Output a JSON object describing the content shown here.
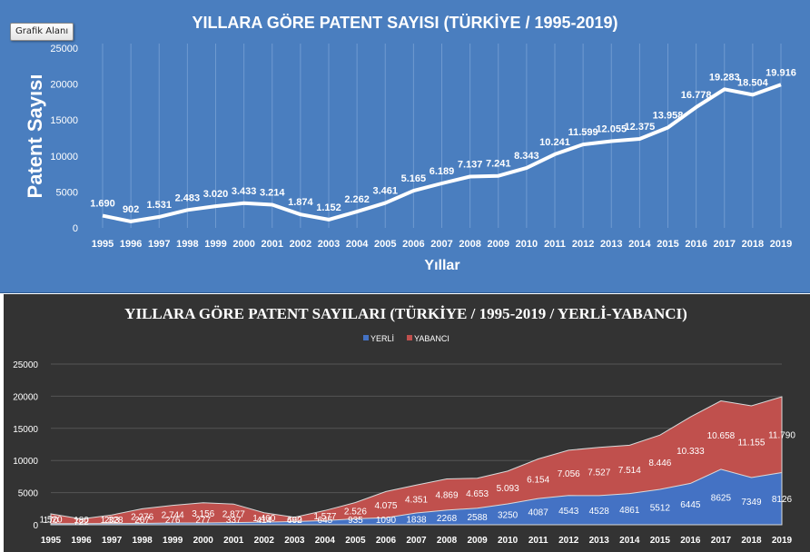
{
  "tooltip": "Grafik Alanı",
  "colors": {
    "chart1_bg": "#4a7ebf",
    "chart2_bg": "#333333",
    "yerli": "#4472c4",
    "yabanci": "#c0504d",
    "line": "#ffffff"
  },
  "chart_data": [
    {
      "type": "line",
      "title": "YILLARA GÖRE PATENT SAYISI (TÜRKİYE / 1995-2019)",
      "xlabel": "Yıllar",
      "ylabel": "Patent Sayısı",
      "ylim": [
        0,
        25000
      ],
      "yticks": [
        "0",
        "5000",
        "10000",
        "15000",
        "20000",
        "25000"
      ],
      "grid": "vertical",
      "categories": [
        "1995",
        "1996",
        "1997",
        "1998",
        "1999",
        "2000",
        "2001",
        "2002",
        "2003",
        "2004",
        "2005",
        "2006",
        "2007",
        "2008",
        "2009",
        "2010",
        "2011",
        "2012",
        "2013",
        "2014",
        "2015",
        "2016",
        "2017",
        "2018",
        "2019"
      ],
      "values": [
        1690,
        902,
        1531,
        2483,
        3020,
        3433,
        3214,
        1874,
        1152,
        2262,
        3461,
        5165,
        6189,
        7137,
        7241,
        8343,
        10241,
        11599,
        12055,
        12375,
        13958,
        16778,
        19283,
        18504,
        19916
      ],
      "data_labels": [
        "1.690",
        "902",
        "1.531",
        "2.483",
        "3.020",
        "3.433",
        "3.214",
        "1.874",
        "1.152",
        "2.262",
        "3.461",
        "5.165",
        "6.189",
        "7.137",
        "7.241",
        "8.343",
        "10.241",
        "11.599",
        "12.055",
        "12.375",
        "13.958",
        "16.778",
        "19.283",
        "18.504",
        "19.916"
      ]
    },
    {
      "type": "area",
      "stacked": true,
      "title": "YILLARA GÖRE PATENT SAYILARI (TÜRKİYE / 1995-2019 / YERLİ-YABANCI)",
      "legend_position": "top",
      "ylim": [
        0,
        25000
      ],
      "yticks": [
        "0",
        "5000",
        "10000",
        "15000",
        "20000",
        "25000"
      ],
      "grid": "horizontal",
      "categories": [
        "1995",
        "1996",
        "1997",
        "1998",
        "1999",
        "2000",
        "2001",
        "2002",
        "2003",
        "2004",
        "2005",
        "2006",
        "2007",
        "2008",
        "2009",
        "2010",
        "2011",
        "2012",
        "2013",
        "2014",
        "2015",
        "2016",
        "2017",
        "2018",
        "2019"
      ],
      "series": [
        {
          "name": "YERLİ",
          "values": [
            170,
            180,
            203,
            207,
            276,
            277,
            337,
            414,
            490,
            645,
            935,
            1090,
            1838,
            2268,
            2588,
            3250,
            4087,
            4543,
            4528,
            4861,
            5512,
            6445,
            8625,
            7349,
            8126
          ],
          "labels": [
            "170",
            "180",
            "203",
            "207",
            "276",
            "277",
            "337",
            "414",
            "490",
            "645",
            "935",
            "1090",
            "1838",
            "2268",
            "2588",
            "3250",
            "4087",
            "4543",
            "4528",
            "4861",
            "5512",
            "6445",
            "8625",
            "7349",
            "8126"
          ]
        },
        {
          "name": "YABANCI",
          "values": [
            1520,
            722,
            1328,
            2276,
            2744,
            3156,
            2877,
            1460,
            662,
            1577,
            2526,
            4075,
            4351,
            4869,
            4653,
            5093,
            6154,
            7056,
            7527,
            7514,
            8446,
            10333,
            10658,
            11155,
            11790
          ],
          "labels": [
            "1.520",
            "722",
            "1.328",
            "2.276",
            "2.744",
            "3.156",
            "2.877",
            "1.460",
            "662",
            "1.577",
            "2.526",
            "4.075",
            "4.351",
            "4.869",
            "4.653",
            "5.093",
            "6.154",
            "7.056",
            "7.527",
            "7.514",
            "8.446",
            "10.333",
            "10.658",
            "11.155",
            "11.790"
          ]
        }
      ]
    }
  ]
}
